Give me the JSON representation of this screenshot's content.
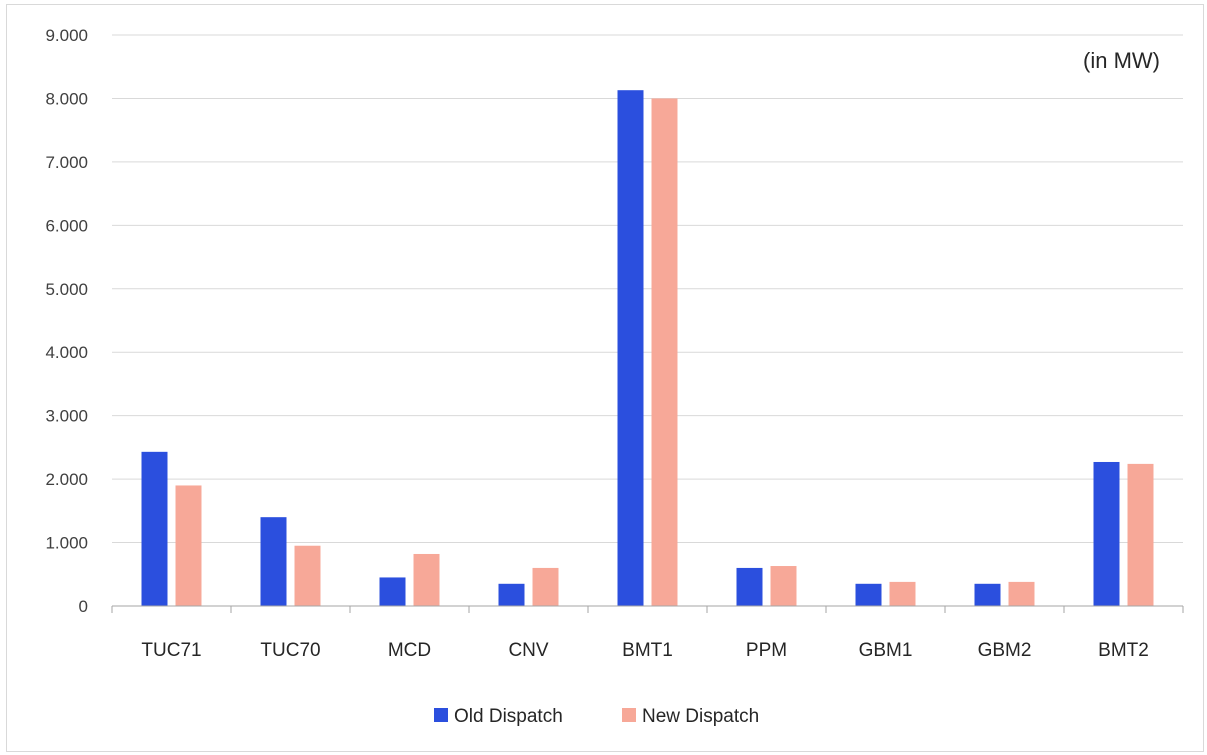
{
  "chart_data": {
    "type": "bar",
    "title": "",
    "annotation": "(in MW)",
    "xlabel": "",
    "ylabel": "",
    "categories": [
      "TUC71",
      "TUC70",
      "MCD",
      "CNV",
      "BMT1",
      "PPM",
      "GBM1",
      "GBM2",
      "BMT2"
    ],
    "series": [
      {
        "name": "Old Dispatch",
        "color": "#2b4fde",
        "values": [
          2430,
          1400,
          450,
          350,
          8130,
          600,
          350,
          350,
          2270
        ]
      },
      {
        "name": "New Dispatch",
        "color": "#f7a898",
        "values": [
          1900,
          950,
          820,
          600,
          8000,
          630,
          380,
          380,
          2240
        ]
      }
    ],
    "ylim": [
      0,
      9000
    ],
    "yticks": [
      0,
      1000,
      2000,
      3000,
      4000,
      5000,
      6000,
      7000,
      8000,
      9000
    ],
    "ytick_labels": [
      "0",
      "1.000",
      "2.000",
      "3.000",
      "4.000",
      "5.000",
      "6.000",
      "7.000",
      "8.000",
      "9.000"
    ],
    "grid": true,
    "legend_position": "bottom"
  }
}
